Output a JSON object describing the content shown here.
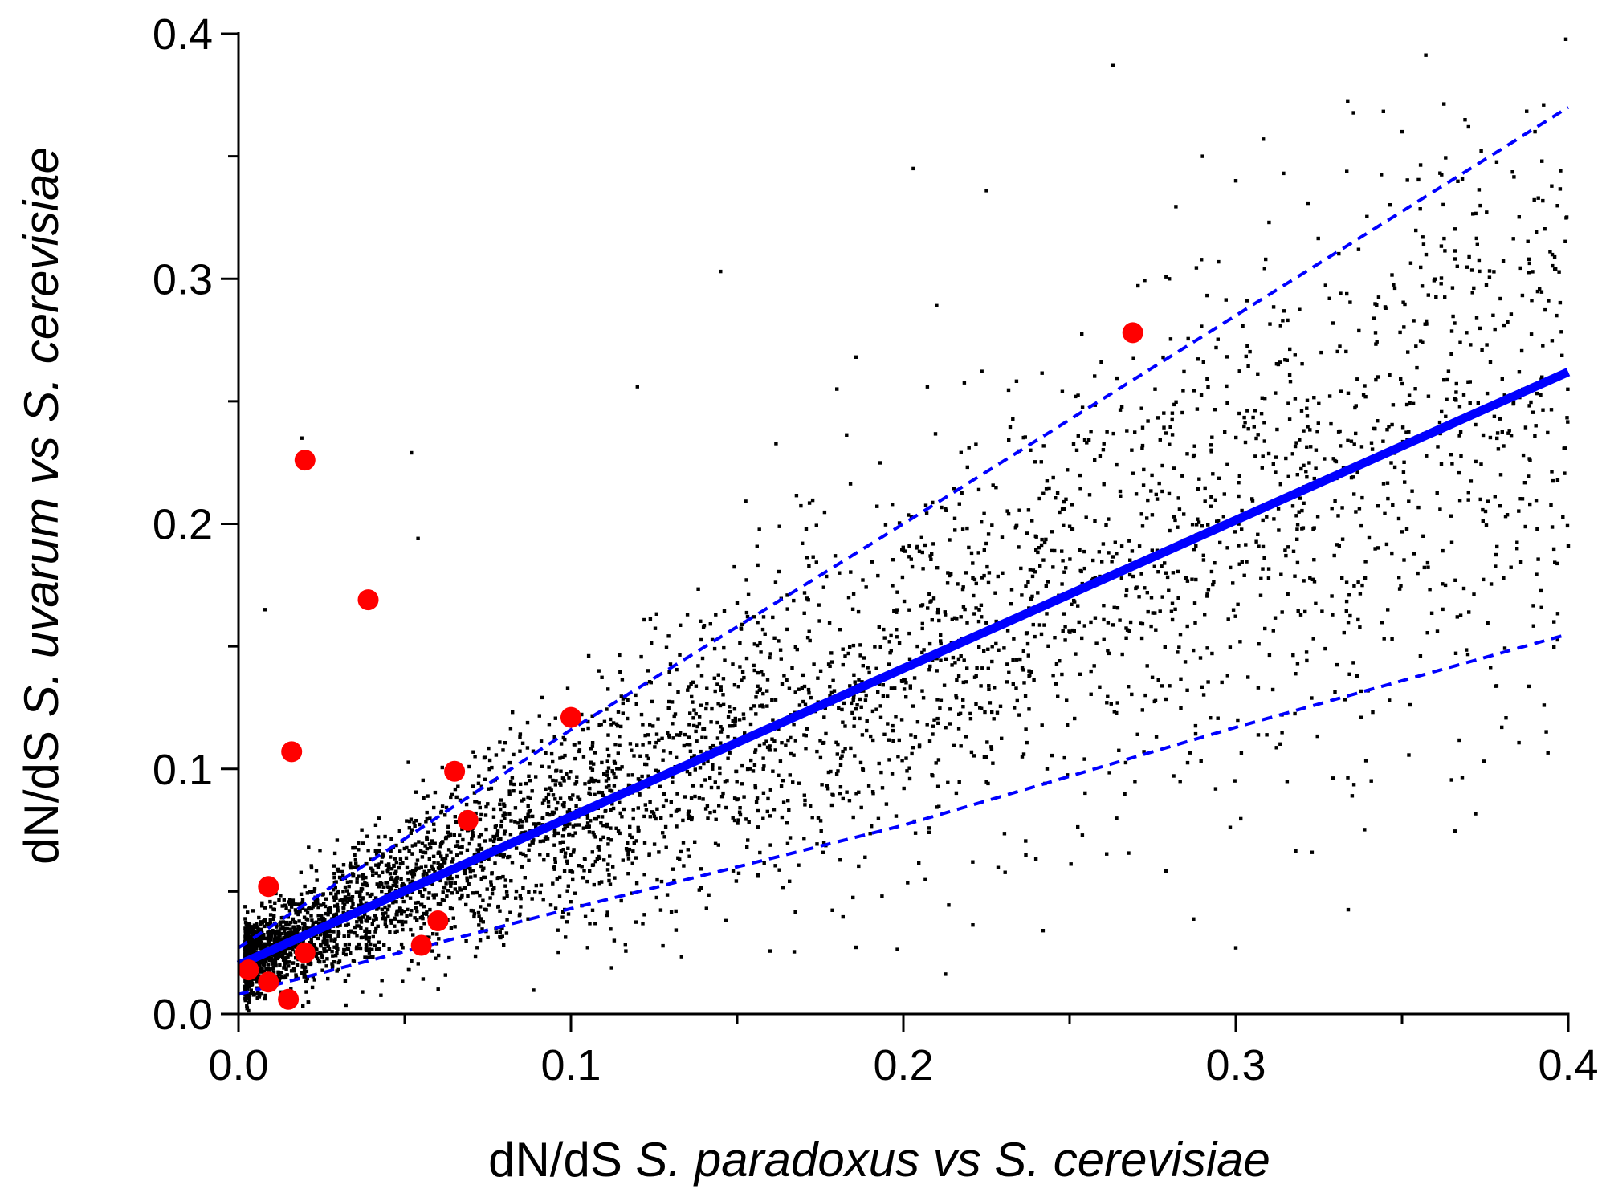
{
  "chart_data": {
    "type": "scatter",
    "xlabel": {
      "prefix": "dN/dS ",
      "species1": "S. paradoxus",
      "connector": " vs ",
      "species2": "S. cerevisiae"
    },
    "ylabel": {
      "prefix": "dN/dS ",
      "species1": "S. uvarum vs S. cerevisiae",
      "connector": "",
      "species2": ""
    },
    "xlim": [
      0,
      0.4
    ],
    "ylim": [
      0,
      0.4
    ],
    "x_ticks": [
      "0.0",
      "0.1",
      "0.2",
      "0.3",
      "0.4"
    ],
    "y_ticks": [
      "0.0",
      "0.1",
      "0.2",
      "0.3",
      "0.4"
    ],
    "x_tick_values": [
      0,
      0.1,
      0.2,
      0.3,
      0.4
    ],
    "y_tick_values": [
      0,
      0.1,
      0.2,
      0.3,
      0.4
    ],
    "grid": false,
    "colors": {
      "background_points": "#000000",
      "highlight_points": "#ff0000",
      "fit_line": "#0000ff"
    },
    "series": [
      {
        "kind": "background_scatter",
        "approx_point_count": 4500,
        "sample_points": [
          [
            0.263,
            0.387
          ],
          [
            0.145,
            0.303
          ],
          [
            0.203,
            0.345
          ],
          [
            0.225,
            0.336
          ],
          [
            0.29,
            0.35
          ],
          [
            0.35,
            0.36
          ],
          [
            0.37,
            0.362
          ],
          [
            0.39,
            0.36
          ],
          [
            0.12,
            0.256
          ],
          [
            0.18,
            0.255
          ],
          [
            0.21,
            0.289
          ],
          [
            0.28,
            0.3
          ],
          [
            0.3,
            0.34
          ],
          [
            0.31,
            0.323
          ],
          [
            0.019,
            0.235
          ],
          [
            0.008,
            0.165
          ],
          [
            0.052,
            0.229
          ],
          [
            0.054,
            0.194
          ],
          [
            0.3,
            0.027
          ],
          [
            0.242,
            0.034
          ],
          [
            0.4,
            0.191
          ],
          [
            0.38,
            0.117
          ],
          [
            0.335,
            0.089
          ]
        ]
      },
      {
        "kind": "highlight",
        "points": [
          [
            0.003,
            0.018
          ],
          [
            0.009,
            0.013
          ],
          [
            0.015,
            0.006
          ],
          [
            0.02,
            0.025
          ],
          [
            0.009,
            0.052
          ],
          [
            0.016,
            0.107
          ],
          [
            0.02,
            0.226
          ],
          [
            0.039,
            0.169
          ],
          [
            0.055,
            0.028
          ],
          [
            0.06,
            0.038
          ],
          [
            0.065,
            0.099
          ],
          [
            0.069,
            0.079
          ],
          [
            0.1,
            0.121
          ],
          [
            0.269,
            0.278
          ]
        ]
      },
      {
        "kind": "fit_line",
        "points": [
          [
            0,
            0.02
          ],
          [
            0.4,
            0.262
          ]
        ]
      },
      {
        "kind": "upper_prediction_band",
        "points": [
          [
            0,
            0.027
          ],
          [
            0.1,
            0.116
          ],
          [
            0.2,
            0.2
          ],
          [
            0.3,
            0.285
          ],
          [
            0.4,
            0.37
          ]
        ]
      },
      {
        "kind": "lower_prediction_band",
        "points": [
          [
            0,
            0.008
          ],
          [
            0.1,
            0.043
          ],
          [
            0.2,
            0.077
          ],
          [
            0.3,
            0.117
          ],
          [
            0.4,
            0.155
          ]
        ]
      }
    ]
  }
}
